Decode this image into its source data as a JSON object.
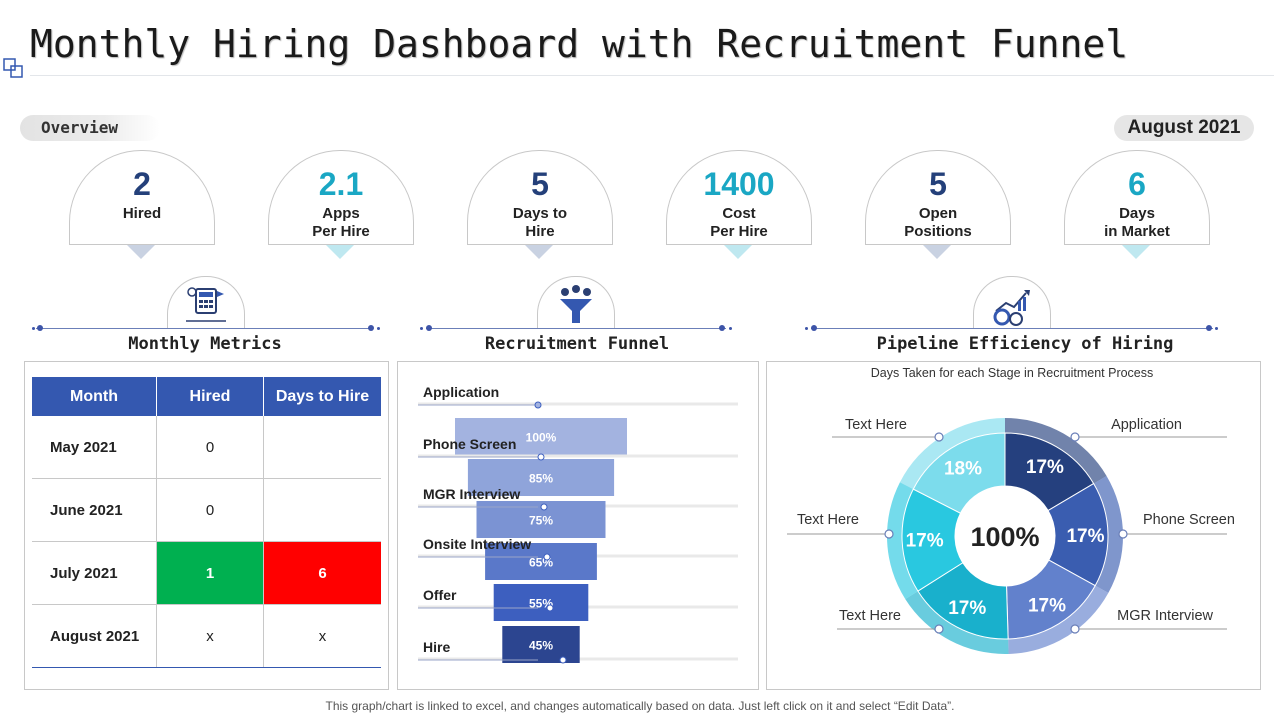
{
  "title": "Monthly Hiring Dashboard with Recruitment Funnel",
  "overview_label": "Overview",
  "period": "August 2021",
  "kpis": [
    {
      "value": "2",
      "label1": "Hired",
      "label2": "",
      "color": "navy"
    },
    {
      "value": "2.1",
      "label1": "Apps",
      "label2": "Per Hire",
      "color": "cyan"
    },
    {
      "value": "5",
      "label1": "Days to",
      "label2": "Hire",
      "color": "navy"
    },
    {
      "value": "1400",
      "label1": "Cost",
      "label2": "Per Hire",
      "color": "cyan"
    },
    {
      "value": "5",
      "label1": "Open",
      "label2": "Positions",
      "color": "navy"
    },
    {
      "value": "6",
      "label1": "Days",
      "label2": "in Market",
      "color": "cyan"
    }
  ],
  "sections": {
    "metrics_title": "Monthly Metrics",
    "funnel_title": "Recruitment Funnel",
    "pipeline_title": "Pipeline Efficiency of Hiring"
  },
  "metrics_table": {
    "headers": [
      "Month",
      "Hired",
      "Days to Hire"
    ],
    "rows": [
      {
        "month": "May 2021",
        "hired": "0",
        "days": ""
      },
      {
        "month": "June 2021",
        "hired": "0",
        "days": ""
      },
      {
        "month": "July 2021",
        "hired": "1",
        "days": "6"
      },
      {
        "month": "August 2021",
        "hired": "x",
        "days": "x"
      }
    ]
  },
  "colors": {
    "navy": "#24407a",
    "cyan": "#1aa7c4",
    "table_header": "#3458b0",
    "highlight_green": "#00b050",
    "highlight_red": "#ff0000"
  },
  "footer": "This graph/chart is linked to excel, and changes automatically based on data. Just left click on it and select “Edit Data”.",
  "chart_data": [
    {
      "type": "bar",
      "orientation": "horizontal-funnel",
      "categories": [
        "Application",
        "Phone Screen",
        "MGR Interview",
        "Onsite Interview",
        "Offer",
        "Hire"
      ],
      "values": [
        100,
        85,
        75,
        65,
        55,
        45
      ],
      "value_labels": [
        "100%",
        "85%",
        "75%",
        "65%",
        "55%",
        "45%"
      ],
      "bar_colors": [
        "#a3b3e0",
        "#8fa4da",
        "#7b93d3",
        "#5a78c9",
        "#3d5fbf",
        "#2c4590"
      ]
    },
    {
      "type": "pie",
      "subtitle": "Days Taken for each Stage in Recruitment Process",
      "center_label": "100%",
      "slices": [
        {
          "label": "Application",
          "value": 17,
          "display": "17%",
          "color": "#25407e"
        },
        {
          "label": "Phone Screen",
          "value": 17,
          "display": "17%",
          "color": "#3a5db0"
        },
        {
          "label": "MGR Interview",
          "value": 17,
          "display": "17%",
          "color": "#6281cc"
        },
        {
          "label": "Text Here",
          "value": 17,
          "display": "17%",
          "color": "#19b0cc"
        },
        {
          "label": "Text Here",
          "value": 17,
          "display": "17%",
          "color": "#29c8e0"
        },
        {
          "label": "Text Here",
          "value": 18,
          "display": "18%",
          "color": "#7cdcec"
        }
      ]
    }
  ]
}
